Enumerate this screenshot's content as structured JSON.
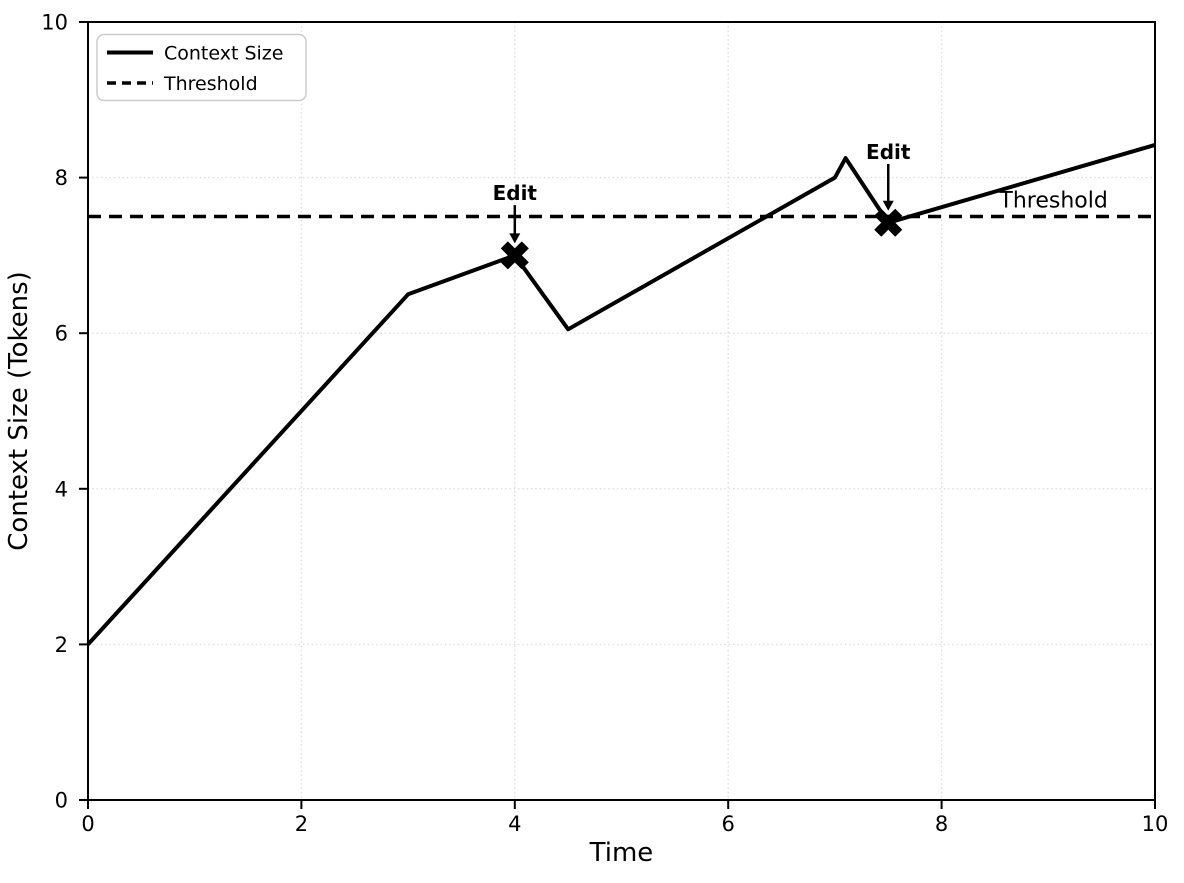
{
  "figure": {
    "background": "#ffffff"
  },
  "chart_data": {
    "type": "line",
    "title": "",
    "xlabel": "Time",
    "ylabel": "Context Size (Tokens)",
    "xlim": [
      0,
      10
    ],
    "ylim": [
      0,
      10
    ],
    "xticks": [
      0,
      2,
      4,
      6,
      8,
      10
    ],
    "yticks": [
      0,
      2,
      4,
      6,
      8,
      10
    ],
    "grid": true,
    "grid_style": "dotted",
    "legend_position": "upper-left",
    "series": [
      {
        "name": "Context Size",
        "line_style": "solid",
        "line_width": 4,
        "color": "#000000",
        "points": [
          [
            0,
            2.0
          ],
          [
            3,
            6.5
          ],
          [
            4,
            7.0
          ],
          [
            4.5,
            6.05
          ],
          [
            7,
            8.0
          ],
          [
            7.1,
            8.25
          ],
          [
            7.5,
            7.42
          ],
          [
            10,
            8.42
          ]
        ]
      },
      {
        "name": "Threshold",
        "line_style": "dashed",
        "line_width": 3.5,
        "color": "#000000",
        "points": [
          [
            0,
            7.5
          ],
          [
            10,
            7.5
          ]
        ]
      }
    ],
    "threshold_value": 7.5,
    "edit_markers": [
      {
        "x": 4,
        "y": 7.0,
        "label": "Edit",
        "label_y": 7.8
      },
      {
        "x": 7.5,
        "y": 7.42,
        "label": "Edit",
        "label_y": 8.33
      }
    ],
    "annotations": [
      {
        "text": "Threshold",
        "x": 9.05,
        "y": 7.72
      }
    ],
    "colors": {
      "line": "#000000",
      "grid": "#dcdcdc",
      "text": "#000000",
      "legend_border": "#cccccc",
      "background": "#ffffff"
    }
  }
}
